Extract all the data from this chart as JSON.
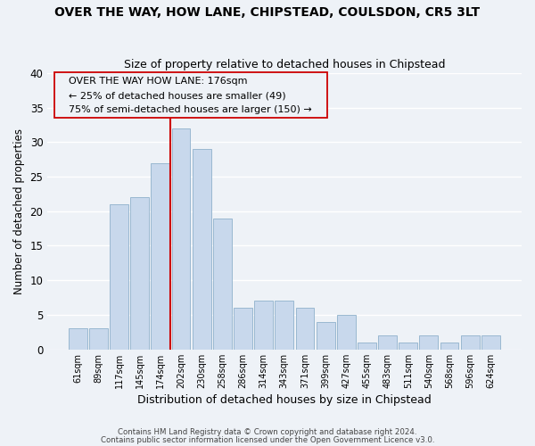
{
  "title": "OVER THE WAY, HOW LANE, CHIPSTEAD, COULSDON, CR5 3LT",
  "subtitle": "Size of property relative to detached houses in Chipstead",
  "xlabel": "Distribution of detached houses by size in Chipstead",
  "ylabel": "Number of detached properties",
  "bar_color": "#c8d8ec",
  "bar_edge_color": "#9ab8d0",
  "categories": [
    "61sqm",
    "89sqm",
    "117sqm",
    "145sqm",
    "174sqm",
    "202sqm",
    "230sqm",
    "258sqm",
    "286sqm",
    "314sqm",
    "343sqm",
    "371sqm",
    "399sqm",
    "427sqm",
    "455sqm",
    "483sqm",
    "511sqm",
    "540sqm",
    "568sqm",
    "596sqm",
    "624sqm"
  ],
  "values": [
    3,
    3,
    21,
    22,
    27,
    32,
    29,
    19,
    6,
    7,
    7,
    6,
    4,
    5,
    1,
    2,
    1,
    2,
    1,
    2,
    2
  ],
  "ylim": [
    0,
    40
  ],
  "yticks": [
    0,
    5,
    10,
    15,
    20,
    25,
    30,
    35,
    40
  ],
  "vline_index": 4,
  "vline_color": "#cc0000",
  "annotation_title": "OVER THE WAY HOW LANE: 176sqm",
  "annotation_line1": "← 25% of detached houses are smaller (49)",
  "annotation_line2": "75% of semi-detached houses are larger (150) →",
  "footer1": "Contains HM Land Registry data © Crown copyright and database right 2024.",
  "footer2": "Contains public sector information licensed under the Open Government Licence v3.0.",
  "bg_color": "#eef2f7",
  "grid_color": "#ffffff"
}
